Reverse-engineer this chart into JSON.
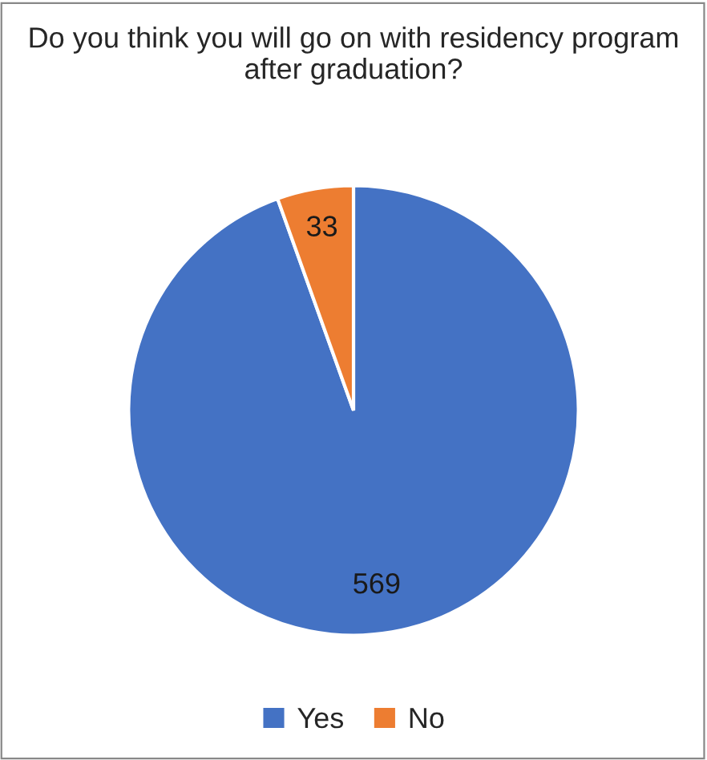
{
  "chart_data": {
    "type": "pie",
    "title": "Do you think you will go on with residency program after graduation?",
    "categories": [
      "Yes",
      "No"
    ],
    "values": [
      569,
      33
    ],
    "colors": [
      "#4472c4",
      "#ed7d31"
    ],
    "data_labels": true,
    "legend": "bottom"
  }
}
